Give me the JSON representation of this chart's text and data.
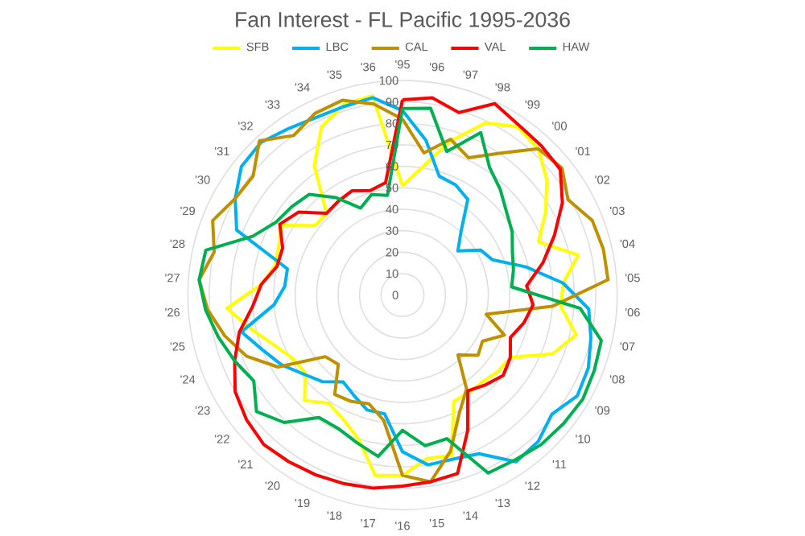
{
  "chart_data": {
    "type": "radar",
    "title": "Fan Interest - FL Pacific 1995-2036",
    "categories": [
      "'95",
      "'96",
      "'97",
      "'98",
      "'99",
      "'00",
      "'01",
      "'02",
      "'03",
      "'04",
      "'05",
      "'06",
      "'07",
      "'08",
      "'09",
      "'10",
      "'11",
      "'12",
      "'13",
      "'14",
      "'15",
      "'16",
      "'17",
      "'18",
      "'19",
      "'20",
      "'21",
      "'22",
      "'23",
      "'24",
      "'25",
      "'26",
      "'27",
      "'28",
      "'29",
      "'30",
      "'31",
      "'32",
      "'33",
      "'34",
      "'35",
      "'36"
    ],
    "series": [
      {
        "name": "SFB",
        "color": "#ffff00",
        "values": [
          51,
          60,
          75,
          89,
          95,
          93,
          86,
          77,
          68,
          84,
          75,
          74,
          83,
          75,
          58,
          57,
          55,
          55,
          55,
          78,
          77,
          84,
          85,
          70,
          64,
          61,
          67,
          58,
          59,
          64,
          72,
          82,
          66,
          61,
          62,
          65,
          52,
          52,
          73,
          87,
          93,
          94
        ]
      },
      {
        "name": "LBC",
        "color": "#00b0f0",
        "values": [
          86,
          73,
          58,
          57,
          54,
          40,
          33,
          42,
          45,
          59,
          75,
          87,
          90,
          93,
          94,
          89,
          93,
          94,
          82,
          80,
          80,
          73,
          56,
          56,
          52,
          49,
          55,
          59,
          65,
          70,
          77,
          60,
          55,
          55,
          83,
          90,
          96,
          97,
          94,
          92,
          92,
          93
        ]
      },
      {
        "name": "CAL",
        "color": "#bf9000",
        "values": [
          82,
          67,
          76,
          71,
          80,
          93,
          95,
          89,
          95,
          96,
          96,
          70,
          40,
          51,
          43,
          45,
          38,
          53,
          61,
          76,
          88,
          84,
          59,
          53,
          55,
          56,
          44,
          46,
          67,
          78,
          85,
          91,
          95,
          90,
          95,
          90,
          89,
          98,
          90,
          94,
          95,
          90
        ]
      },
      {
        "name": "VAL",
        "color": "#ff0000",
        "values": [
          91,
          93,
          89,
          99,
          96,
          95,
          94,
          86,
          76,
          67,
          58,
          61,
          58,
          54,
          58,
          60,
          57,
          54,
          70,
          87,
          88,
          89,
          91,
          92,
          93,
          94,
          95,
          93,
          90,
          84,
          78,
          70,
          66,
          60,
          60,
          66,
          62,
          52,
          53,
          54,
          51,
          53
        ]
      },
      {
        "name": "HAW",
        "color": "#00b050",
        "values": [
          87,
          88,
          70,
          84,
          72,
          67,
          62,
          59,
          55,
          53,
          51,
          83,
          95,
          96,
          97,
          96,
          95,
          93,
          92,
          70,
          71,
          63,
          76,
          72,
          69,
          69,
          81,
          87,
          80,
          84,
          88,
          92,
          95,
          94,
          75,
          68,
          66,
          64,
          55,
          45,
          49,
          47
        ]
      }
    ],
    "ylim": [
      0,
      100
    ],
    "yticks": [
      0,
      10,
      20,
      30,
      40,
      50,
      60,
      70,
      80,
      90,
      100
    ],
    "grid": true,
    "legend": "top"
  }
}
